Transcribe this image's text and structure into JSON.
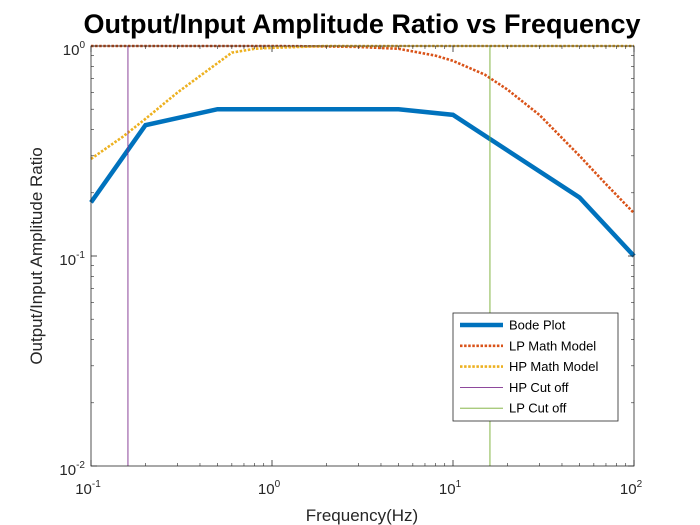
{
  "chart_data": {
    "type": "line",
    "title": "Output/Input Amplitude Ratio vs Frequency",
    "xlabel": "Frequency(Hz)",
    "ylabel": "Output/Input Amplitude Ratio",
    "xscale": "log",
    "yscale": "log",
    "xlim": [
      0.1,
      100
    ],
    "ylim": [
      0.01,
      1
    ],
    "x_ticks": [
      {
        "base": "10",
        "exp": "-1"
      },
      {
        "base": "10",
        "exp": "0"
      },
      {
        "base": "10",
        "exp": "1"
      },
      {
        "base": "10",
        "exp": "2"
      }
    ],
    "y_ticks": [
      {
        "base": "10",
        "exp": "-2"
      },
      {
        "base": "10",
        "exp": "-1"
      },
      {
        "base": "10",
        "exp": "0"
      }
    ],
    "grid": false,
    "legend_position": "lower-right",
    "series": [
      {
        "name": "Bode Plot",
        "color": "#0072BD",
        "style": "solid-thick",
        "x": [
          0.1,
          0.2,
          0.5,
          1,
          2,
          5,
          10,
          50,
          100
        ],
        "y": [
          0.18,
          0.42,
          0.5,
          0.5,
          0.5,
          0.5,
          0.47,
          0.19,
          0.1
        ]
      },
      {
        "name": "LP Math Model",
        "color": "#D95319",
        "style": "dotted",
        "x": [
          0.1,
          0.2,
          0.5,
          1,
          2,
          3,
          5,
          8,
          10,
          15,
          20,
          30,
          50,
          70,
          100
        ],
        "y": [
          1,
          1,
          1,
          1,
          0.995,
          0.99,
          0.97,
          0.9,
          0.85,
          0.73,
          0.62,
          0.47,
          0.3,
          0.22,
          0.16
        ]
      },
      {
        "name": "HP Math Model",
        "color": "#EDB120",
        "style": "dotted",
        "x": [
          0.1,
          0.15,
          0.2,
          0.3,
          0.4,
          0.6,
          0.8,
          1,
          2,
          5,
          10,
          100
        ],
        "y": [
          0.29,
          0.37,
          0.45,
          0.6,
          0.72,
          0.93,
          0.97,
          0.98,
          1,
          1,
          1,
          1
        ]
      },
      {
        "name": "HP Cut off",
        "color": "#7E2F8E",
        "style": "vline",
        "x": [
          0.16,
          0.16
        ],
        "y": [
          0.01,
          1
        ]
      },
      {
        "name": "LP Cut off",
        "color": "#77AC30",
        "style": "vline",
        "x": [
          16,
          16
        ],
        "y": [
          0.01,
          1
        ]
      }
    ]
  }
}
